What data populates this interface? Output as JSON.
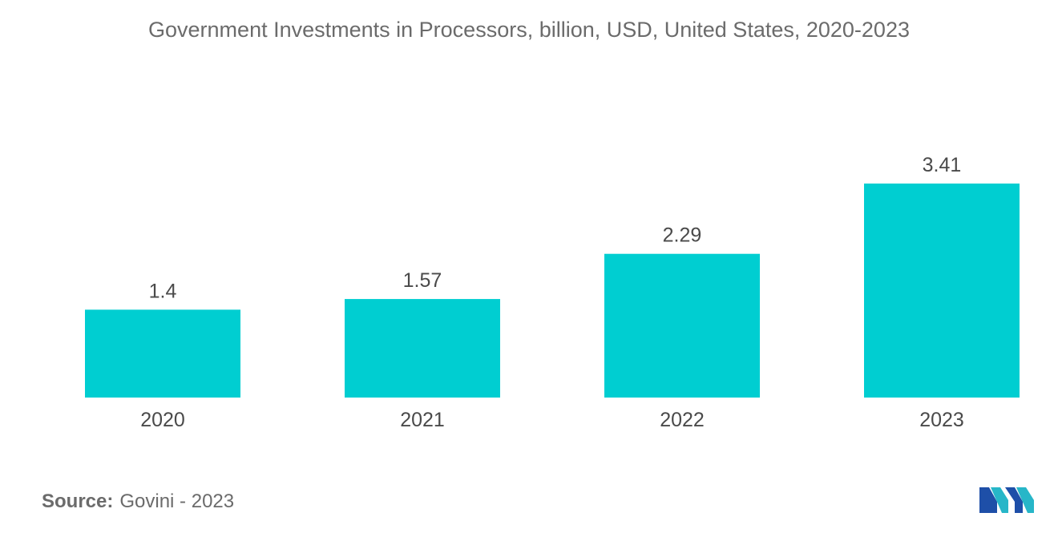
{
  "chart_data": {
    "type": "bar",
    "title": "Government Investments in Processors, billion, USD, United States, 2020-2023",
    "categories": [
      "2020",
      "2021",
      "2022",
      "2023"
    ],
    "values": [
      1.4,
      1.57,
      2.29,
      3.41
    ],
    "value_labels": [
      "1.4",
      "1.57",
      "2.29",
      "3.41"
    ],
    "xlabel": "",
    "ylabel": "",
    "ylim": [
      0,
      3.41
    ],
    "grid": false,
    "bar_color": "#00ced1"
  },
  "source": {
    "label": "Source:",
    "text": "Govini - 2023"
  },
  "logo": {
    "icon": "mordor-intelligence-logo-icon",
    "colors": [
      "#1e4fa8",
      "#27b6c8"
    ]
  }
}
